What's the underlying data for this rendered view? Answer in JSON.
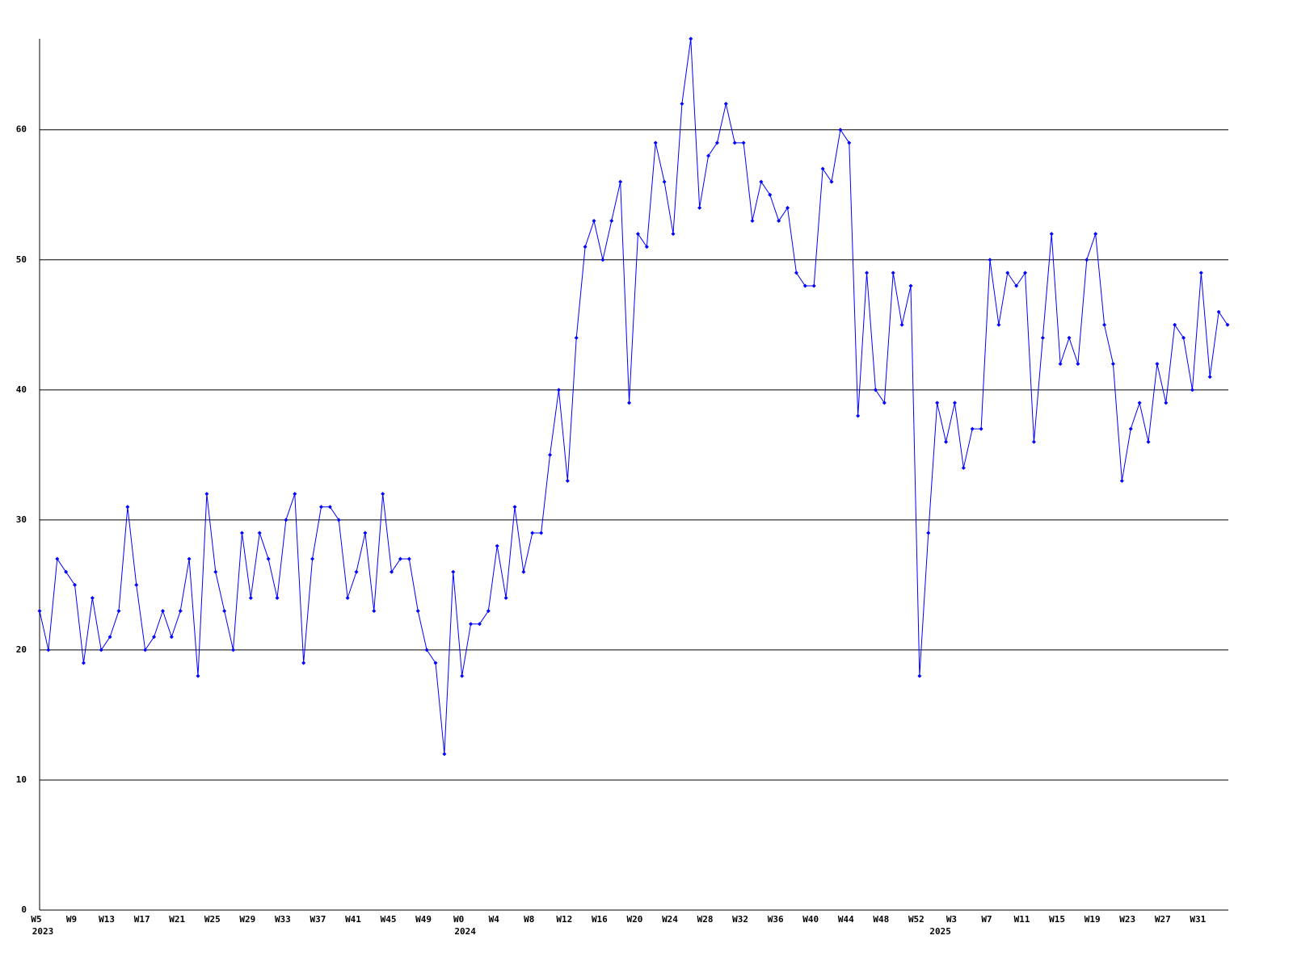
{
  "chart_data": {
    "type": "line",
    "categories": [
      "W5",
      null,
      null,
      null,
      "W9",
      null,
      null,
      null,
      "W13",
      null,
      null,
      null,
      "W17",
      null,
      null,
      null,
      "W21",
      null,
      null,
      null,
      "W25",
      null,
      null,
      null,
      "W29",
      null,
      null,
      null,
      "W33",
      null,
      null,
      null,
      "W37",
      null,
      null,
      null,
      "W41",
      null,
      null,
      null,
      "W45",
      null,
      null,
      null,
      "W49",
      null,
      null,
      null,
      "W0",
      null,
      null,
      null,
      "W4",
      null,
      null,
      null,
      "W8",
      null,
      null,
      null,
      "W12",
      null,
      null,
      null,
      "W16",
      null,
      null,
      null,
      "W20",
      null,
      null,
      null,
      "W24",
      null,
      null,
      null,
      "W28",
      null,
      null,
      null,
      "W32",
      null,
      null,
      null,
      "W36",
      null,
      null,
      null,
      "W40",
      null,
      null,
      null,
      "W44",
      null,
      null,
      null,
      "W48",
      null,
      null,
      null,
      "W52",
      null,
      null,
      null,
      "W3",
      null,
      null,
      null,
      "W7",
      null,
      null,
      null,
      "W11",
      null,
      null,
      null,
      "W15",
      null,
      null,
      null,
      "W19",
      null,
      null,
      null,
      "W23",
      null,
      null,
      null,
      "W27",
      null,
      null,
      null,
      "W31",
      null,
      null,
      null
    ],
    "year_categories": [
      "2023",
      null,
      null,
      null,
      null,
      null,
      null,
      null,
      null,
      null,
      null,
      null,
      null,
      null,
      null,
      null,
      null,
      null,
      null,
      null,
      null,
      null,
      null,
      null,
      null,
      null,
      null,
      null,
      null,
      null,
      null,
      null,
      null,
      null,
      null,
      null,
      null,
      null,
      null,
      null,
      null,
      null,
      null,
      null,
      null,
      null,
      null,
      null,
      "2024",
      null,
      null,
      null,
      null,
      null,
      null,
      null,
      null,
      null,
      null,
      null,
      null,
      null,
      null,
      null,
      null,
      null,
      null,
      null,
      null,
      null,
      null,
      null,
      null,
      null,
      null,
      null,
      null,
      null,
      null,
      null,
      null,
      null,
      null,
      null,
      null,
      null,
      null,
      null,
      null,
      null,
      null,
      null,
      null,
      null,
      null,
      null,
      null,
      null,
      null,
      null,
      null,
      null,
      "2025",
      null,
      null,
      null,
      null,
      null,
      null,
      null,
      null,
      null,
      null,
      null,
      null,
      null,
      null,
      null,
      null,
      null,
      null,
      null,
      null,
      null,
      null,
      null,
      null,
      null,
      null,
      null,
      null,
      null,
      null,
      null,
      null,
      null,
      null
    ],
    "series": [
      {
        "color": "#0000ff",
        "values": [
          23,
          20,
          27,
          26,
          25,
          19,
          24,
          20,
          21,
          23,
          31,
          25,
          20,
          21,
          23,
          21,
          23,
          27,
          18,
          32,
          26,
          23,
          20,
          29,
          24,
          29,
          27,
          24,
          30,
          32,
          19,
          27,
          31,
          31,
          30,
          24,
          26,
          29,
          23,
          32,
          26,
          27,
          27,
          23,
          20,
          19,
          12,
          26,
          18,
          22,
          22,
          23,
          28,
          24,
          31,
          26,
          29,
          29,
          35,
          40,
          33,
          44,
          51,
          53,
          50,
          53,
          56,
          39,
          52,
          51,
          59,
          56,
          52,
          62,
          67,
          54,
          58,
          59,
          62,
          59,
          59,
          53,
          56,
          55,
          53,
          54,
          49,
          48,
          48,
          57,
          56,
          60,
          59,
          38,
          49,
          40,
          39,
          49,
          45,
          48,
          18,
          29,
          39,
          36,
          39,
          34,
          37,
          37,
          50,
          45,
          49,
          48,
          49,
          36,
          44,
          52,
          42,
          44,
          42,
          50,
          52,
          45,
          42,
          33,
          37,
          39,
          36,
          42,
          39,
          45,
          44,
          40,
          49,
          41,
          46,
          45
        ]
      }
    ],
    "ylim": [
      0,
      67
    ],
    "yticks": [
      0,
      10,
      20,
      30,
      40,
      50,
      60
    ],
    "grid": true
  }
}
